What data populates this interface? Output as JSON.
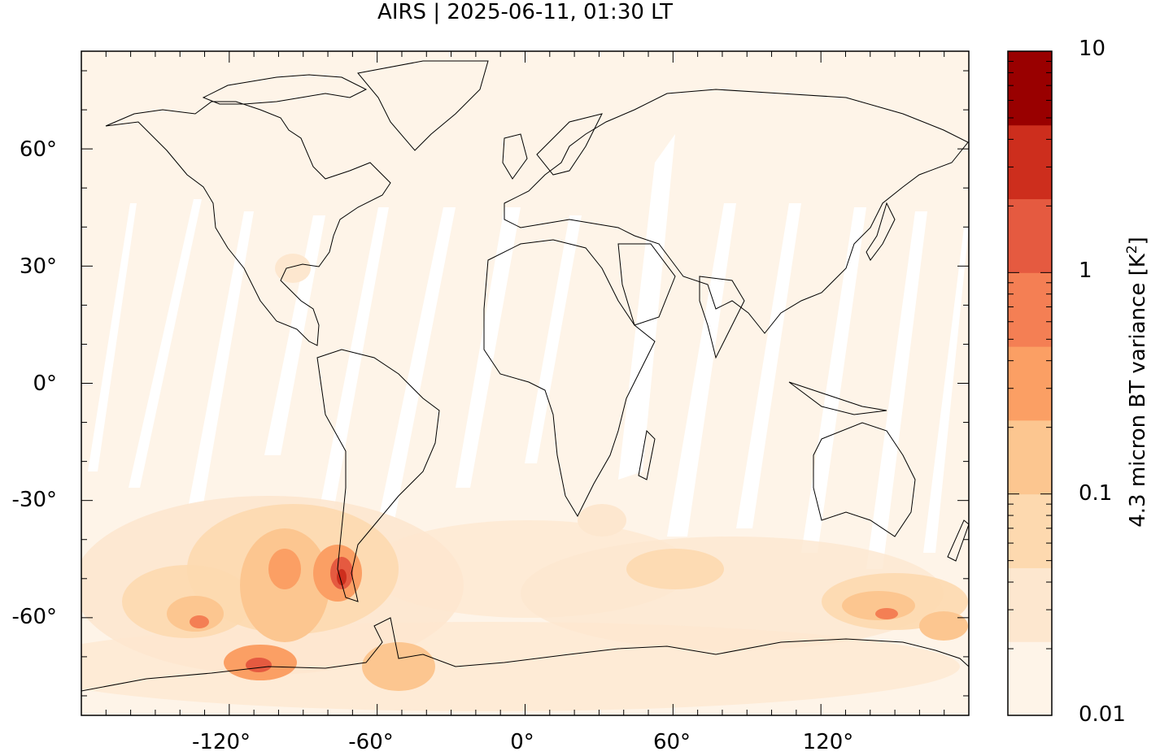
{
  "title": "AIRS | 2025-06-11, 01:30 LT",
  "colorbar": {
    "label": "4.3 micron BT variance [K",
    "label_sup": "2",
    "label_end": "]",
    "tick_labels": [
      "10",
      "1",
      "0.1",
      "0.01"
    ],
    "min": 0.01,
    "max": 10,
    "scale": "log",
    "colors": [
      "#fef4e8",
      "#fde7cf",
      "#fdd9af",
      "#fcc690",
      "#fb9f64",
      "#f47f54",
      "#e55a40",
      "#cd2e1d",
      "#990000"
    ]
  },
  "map": {
    "projection": "equirectangular",
    "lon_range": [
      -180,
      180
    ],
    "lat_range": [
      -85,
      85
    ],
    "x_tick_labels": [
      "-120°",
      "-60°",
      "0°",
      "60°",
      "120°"
    ],
    "y_tick_labels": [
      "60°",
      "30°",
      "0°",
      "-30°",
      "-60°"
    ],
    "background_color": "#fef4e8",
    "coastline_color": "#000000"
  }
}
